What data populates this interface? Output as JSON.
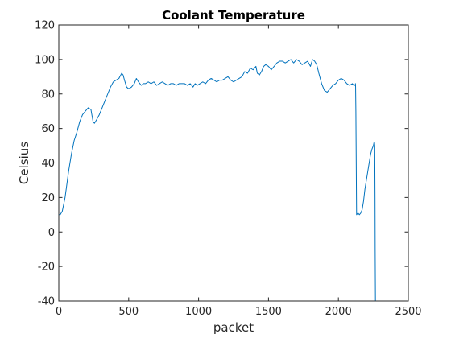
{
  "chart_data": {
    "type": "line",
    "title": "Coolant Temperature",
    "xlabel": "packet",
    "ylabel": "Celsius",
    "xlim": [
      0,
      2500
    ],
    "ylim": [
      -40,
      120
    ],
    "xticks": [
      0,
      500,
      1000,
      1500,
      2000,
      2500
    ],
    "yticks": [
      -40,
      -20,
      0,
      20,
      40,
      60,
      80,
      100,
      120
    ],
    "grid": false,
    "line_color": "#0072bd",
    "series": [
      {
        "x": [
          0,
          10,
          25,
          45,
          70,
          90,
          110,
          130,
          150,
          170,
          190,
          210,
          230,
          245,
          255,
          270,
          290,
          310,
          330,
          350,
          370,
          390,
          410,
          430,
          450,
          460,
          470,
          485,
          500,
          520,
          540,
          555,
          570,
          590,
          605,
          620,
          640,
          660,
          680,
          700,
          720,
          740,
          760,
          780,
          800,
          820,
          840,
          860,
          880,
          900,
          920,
          940,
          960,
          975,
          990,
          1010,
          1030,
          1050,
          1070,
          1090,
          1110,
          1130,
          1150,
          1170,
          1190,
          1210,
          1230,
          1250,
          1270,
          1290,
          1310,
          1330,
          1350,
          1370,
          1390,
          1410,
          1420,
          1435,
          1450,
          1465,
          1480,
          1500,
          1520,
          1540,
          1560,
          1580,
          1600,
          1620,
          1640,
          1660,
          1680,
          1700,
          1720,
          1740,
          1760,
          1780,
          1800,
          1815,
          1830,
          1845,
          1860,
          1880,
          1900,
          1920,
          1940,
          1960,
          1980,
          2000,
          2020,
          2040,
          2060,
          2080,
          2100,
          2110,
          2120,
          2122,
          2123,
          2125,
          2130,
          2140,
          2150,
          2160,
          2170,
          2180,
          2190,
          2200,
          2210,
          2220,
          2230,
          2240,
          2250,
          2255,
          2258,
          2260,
          2262,
          2263,
          2265
        ],
        "y": [
          10,
          10,
          12,
          20,
          35,
          45,
          53,
          58,
          64,
          68,
          70,
          72,
          71,
          64,
          63,
          65,
          68,
          72,
          76,
          80,
          84,
          87,
          88,
          89,
          92,
          91,
          88,
          84,
          83,
          84,
          86,
          89,
          87,
          85,
          86,
          86,
          87,
          86,
          87,
          85,
          86,
          87,
          86,
          85,
          86,
          86,
          85,
          86,
          86,
          86,
          85,
          86,
          84,
          86,
          85,
          86,
          87,
          86,
          88,
          89,
          88,
          87,
          88,
          88,
          89,
          90,
          88,
          87,
          88,
          89,
          90,
          93,
          92,
          95,
          94,
          96,
          92,
          91,
          93,
          96,
          97,
          96,
          94,
          96,
          98,
          99,
          99,
          98,
          99,
          100,
          98,
          100,
          99,
          97,
          98,
          99,
          96,
          100,
          99,
          97,
          92,
          86,
          82,
          81,
          83,
          85,
          86,
          88,
          89,
          88,
          86,
          85,
          86,
          85,
          85,
          86,
          84,
          70,
          10,
          11,
          10,
          11,
          13,
          18,
          25,
          30,
          35,
          40,
          45,
          48,
          50,
          52,
          52,
          50,
          20,
          -10,
          -40
        ]
      }
    ]
  }
}
